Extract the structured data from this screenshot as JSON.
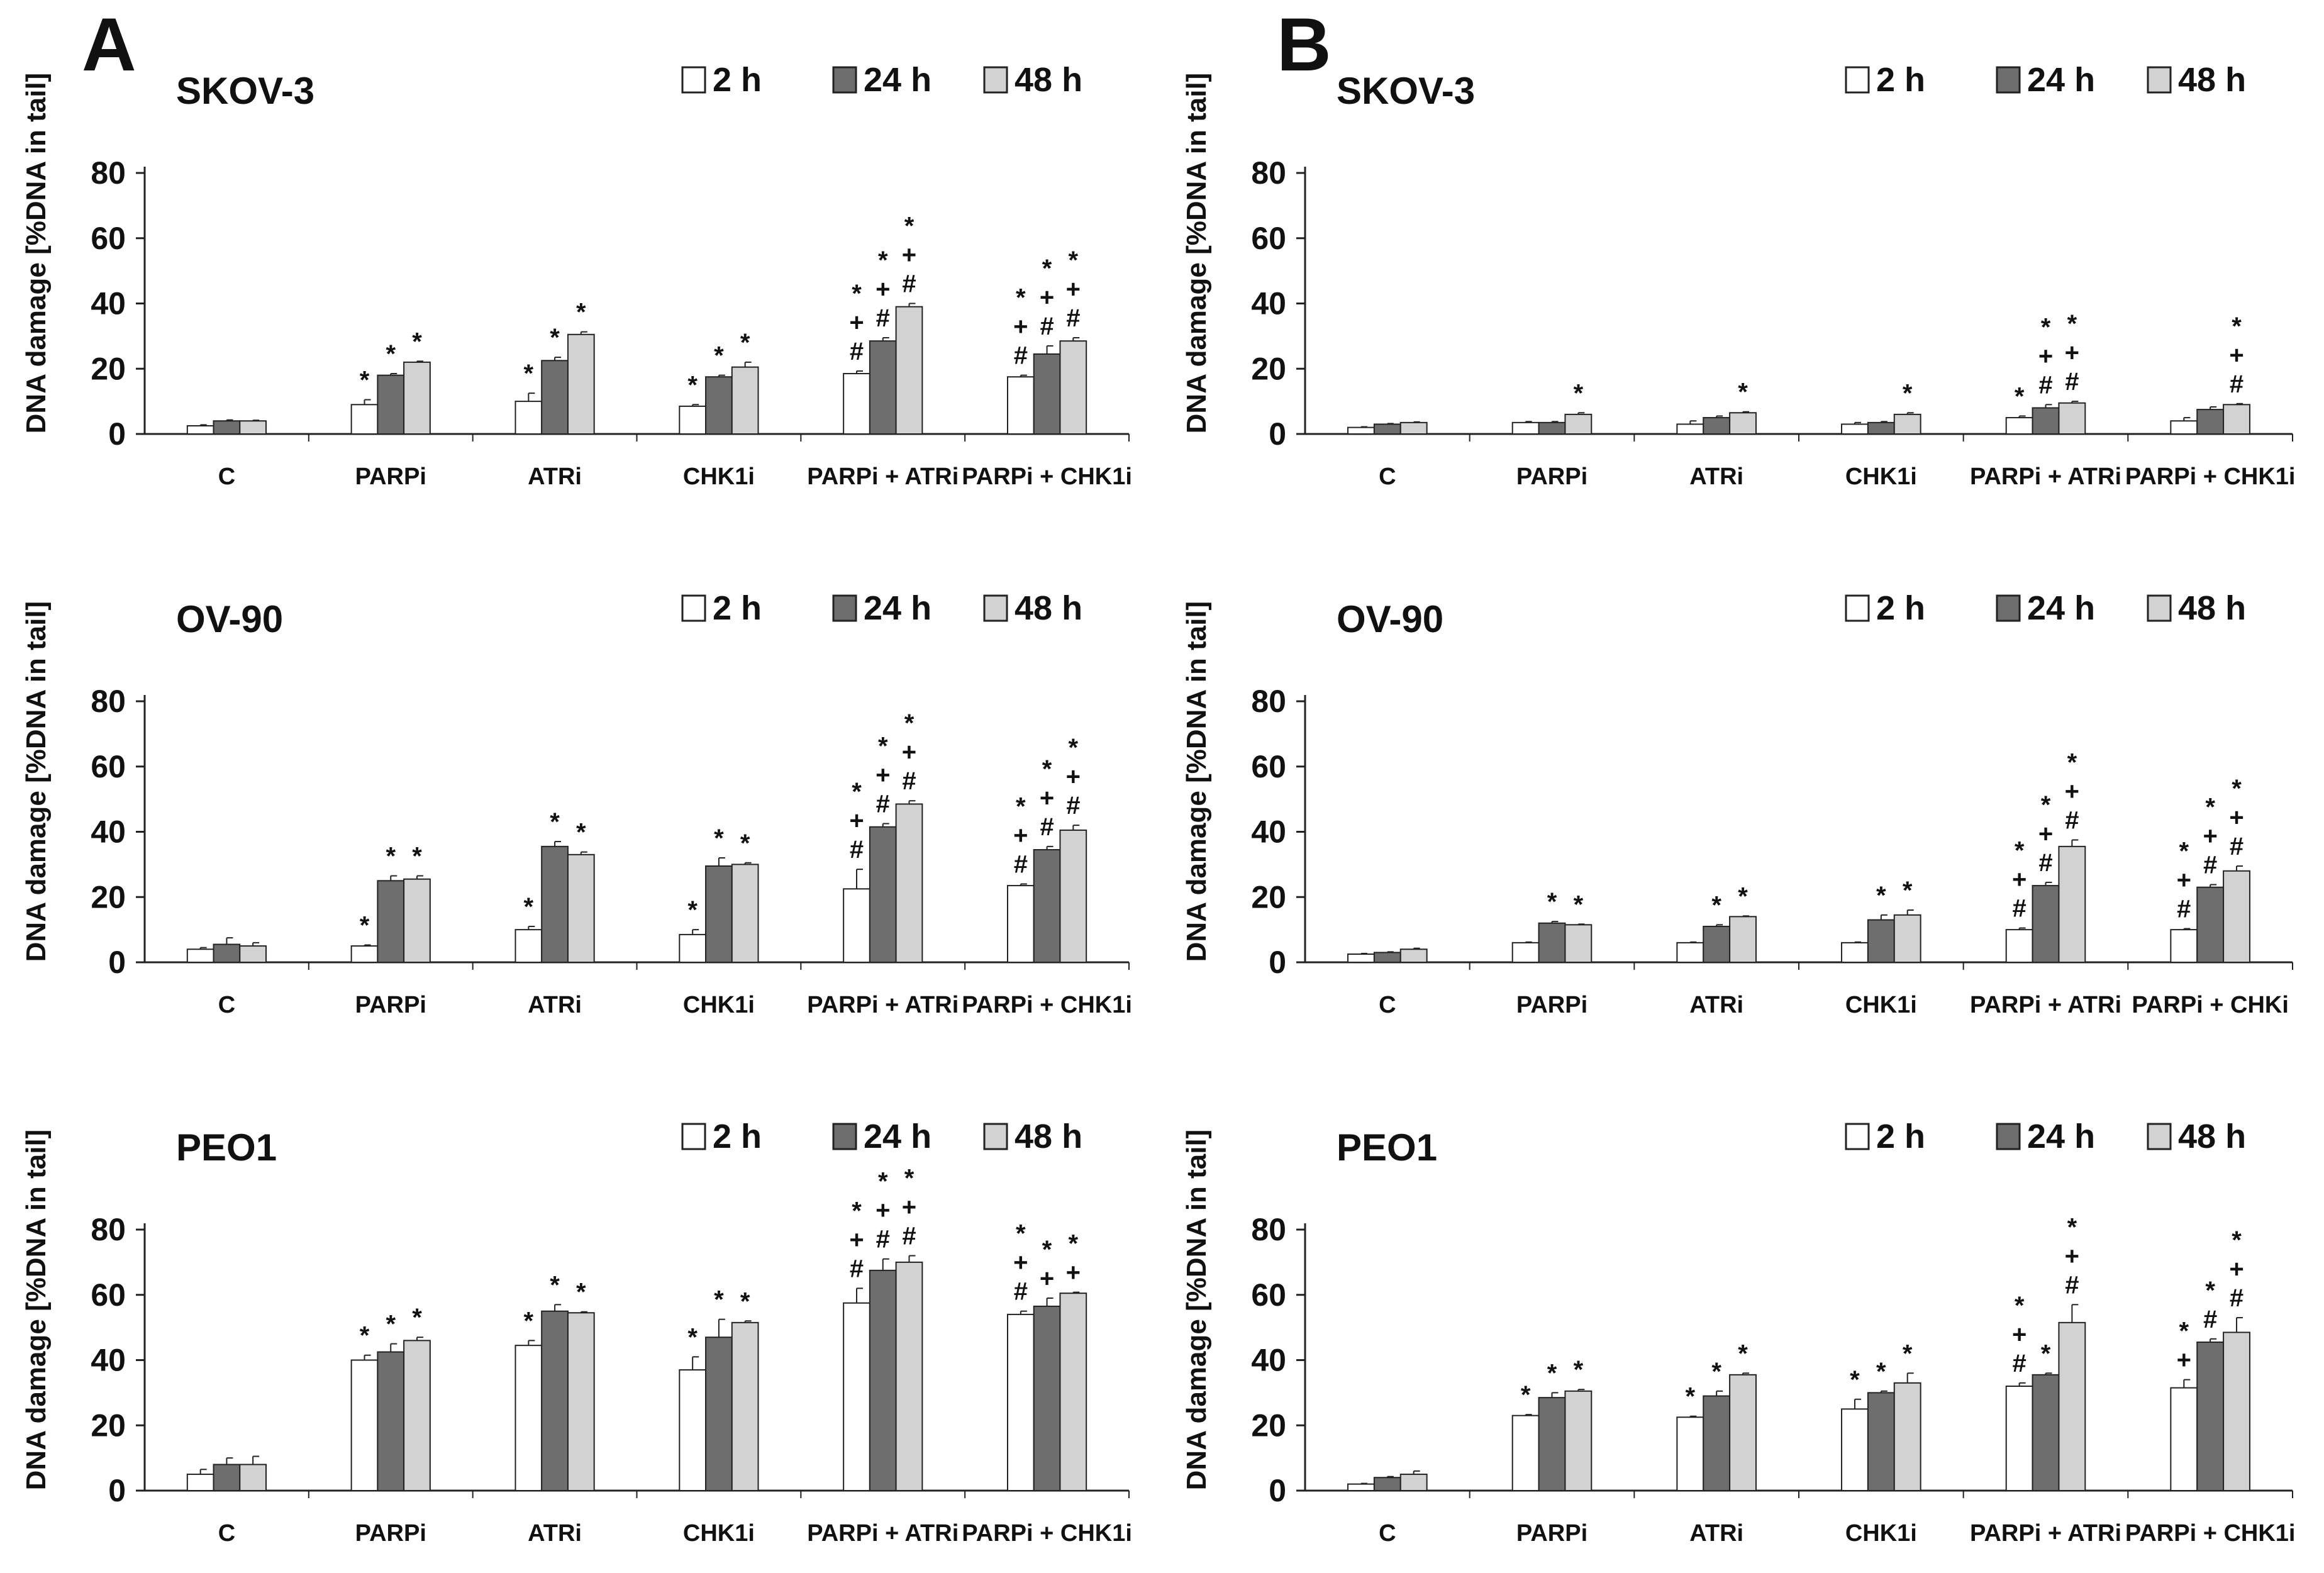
{
  "figure": {
    "panel_labels": [
      "A",
      "B"
    ],
    "colors": {
      "2 h": "#ffffff",
      "24 h": "#6e6e6e",
      "48 h": "#d2d2d2",
      "axis": "#222222",
      "text": "#111111"
    }
  },
  "chart_data": [
    {
      "type": "bar",
      "panel": "A",
      "title": "SKOV-3",
      "ylabel": "DNA damage [%DNA in tail]",
      "xlabel": "",
      "ylim": [
        0,
        80
      ],
      "yticks": [
        0,
        20,
        40,
        60,
        80
      ],
      "categories": [
        "C",
        "PARPi",
        "ATRi",
        "CHK1i",
        "PARPi + ATRi",
        "PARPi + CHK1i"
      ],
      "legend": [
        "2 h",
        "24 h",
        "48 h"
      ],
      "series": [
        {
          "name": "2 h",
          "values": [
            2.5,
            9,
            10,
            8.5,
            18.5,
            17.5
          ],
          "errors": [
            0.3,
            1.5,
            2.5,
            0.5,
            0.8,
            0.5
          ]
        },
        {
          "name": "24 h",
          "values": [
            4,
            18,
            22.5,
            17.5,
            28.5,
            24.5
          ],
          "errors": [
            0.3,
            0.5,
            1,
            0.5,
            1,
            2.5
          ]
        },
        {
          "name": "48 h",
          "values": [
            4,
            22,
            30.5,
            20.5,
            39,
            28.5
          ],
          "errors": [
            0.2,
            0.3,
            0.8,
            1.5,
            1,
            1
          ]
        }
      ],
      "annotations": [
        [
          "",
          "",
          ""
        ],
        [
          "*",
          "*",
          "*"
        ],
        [
          "*",
          "*",
          "*"
        ],
        [
          "*",
          "*",
          "*"
        ],
        [
          "# + *",
          "# + *",
          "# + *"
        ],
        [
          "# + *",
          "# + *",
          "# + *"
        ]
      ]
    },
    {
      "type": "bar",
      "panel": "B",
      "title": "SKOV-3",
      "ylabel": "DNA damage [%DNA in tail]",
      "xlabel": "",
      "ylim": [
        0,
        80
      ],
      "yticks": [
        0,
        20,
        40,
        60,
        80
      ],
      "categories": [
        "C",
        "PARPi",
        "ATRi",
        "CHK1i",
        "PARPi + ATRi",
        "PARPi + CHK1i"
      ],
      "legend": [
        "2 h",
        "24 h",
        "48 h"
      ],
      "series": [
        {
          "name": "2 h",
          "values": [
            2,
            3.5,
            3,
            3,
            5,
            4
          ],
          "errors": [
            0.2,
            0.3,
            1,
            0.5,
            0.5,
            1
          ]
        },
        {
          "name": "24 h",
          "values": [
            3,
            3.5,
            5,
            3.5,
            8,
            7.5
          ],
          "errors": [
            0.2,
            0.3,
            0.5,
            0.3,
            1,
            0.8
          ]
        },
        {
          "name": "48 h",
          "values": [
            3.5,
            6,
            6.5,
            6,
            9.5,
            9
          ],
          "errors": [
            0.2,
            0.5,
            0.3,
            0.5,
            0.5,
            0.3
          ]
        }
      ],
      "annotations": [
        [
          "",
          "",
          ""
        ],
        [
          "",
          "",
          "*"
        ],
        [
          "",
          "",
          "*"
        ],
        [
          "",
          "",
          "*"
        ],
        [
          "*",
          "# + *",
          "# + *"
        ],
        [
          "",
          "",
          "# + *"
        ]
      ]
    },
    {
      "type": "bar",
      "panel": "A",
      "title": "OV-90",
      "ylabel": "DNA damage [%DNA in tail]",
      "xlabel": "",
      "ylim": [
        0,
        80
      ],
      "yticks": [
        0,
        20,
        40,
        60,
        80
      ],
      "categories": [
        "C",
        "PARPi",
        "ATRi",
        "CHK1i",
        "PARPi + ATRi",
        "PARPi + CHK1i"
      ],
      "legend": [
        "2 h",
        "24 h",
        "48 h"
      ],
      "series": [
        {
          "name": "2 h",
          "values": [
            4,
            5,
            10,
            8.5,
            22.5,
            23.5
          ],
          "errors": [
            0.5,
            0.3,
            1,
            1.5,
            6,
            0.5
          ]
        },
        {
          "name": "24 h",
          "values": [
            5.5,
            25,
            35.5,
            29.5,
            41.5,
            34.5
          ],
          "errors": [
            2,
            1.5,
            1.5,
            2.5,
            1,
            1
          ]
        },
        {
          "name": "48 h",
          "values": [
            5,
            25.5,
            33,
            30,
            48.5,
            40.5
          ],
          "errors": [
            1,
            1,
            0.8,
            0.5,
            1,
            1.5
          ]
        }
      ],
      "annotations": [
        [
          "",
          "",
          ""
        ],
        [
          "*",
          "*",
          "*"
        ],
        [
          "*",
          "*",
          "*"
        ],
        [
          "*",
          "*",
          "*"
        ],
        [
          "# + *",
          "# + *",
          "# + *"
        ],
        [
          "# + *",
          "# + *",
          "# + *"
        ]
      ]
    },
    {
      "type": "bar",
      "panel": "B",
      "title": "OV-90",
      "ylabel": "DNA damage [%DNA in tail]",
      "xlabel": "",
      "ylim": [
        0,
        80
      ],
      "yticks": [
        0,
        20,
        40,
        60,
        80
      ],
      "categories": [
        "C",
        "PARPi",
        "ATRi",
        "CHK1i",
        "PARPi + ATRi",
        "PARPi + CHKi"
      ],
      "legend": [
        "2 h",
        "24 h",
        "48 h"
      ],
      "series": [
        {
          "name": "2 h",
          "values": [
            2.5,
            6,
            6,
            6,
            10,
            10
          ],
          "errors": [
            0.2,
            0.2,
            0.2,
            0.2,
            0.5,
            0.3
          ]
        },
        {
          "name": "24 h",
          "values": [
            3,
            12,
            11,
            13,
            23.5,
            23
          ],
          "errors": [
            0.2,
            0.5,
            0.5,
            1.5,
            1,
            0.8
          ]
        },
        {
          "name": "48 h",
          "values": [
            4,
            11.5,
            14,
            14.5,
            35.5,
            28
          ],
          "errors": [
            0.3,
            0.2,
            0.2,
            1.5,
            2,
            1.5
          ]
        }
      ],
      "annotations": [
        [
          "",
          "",
          ""
        ],
        [
          "",
          "*",
          "*"
        ],
        [
          "",
          "*",
          "*"
        ],
        [
          "",
          "*",
          "*"
        ],
        [
          "# + *",
          "# + *",
          "# + *"
        ],
        [
          "# + *",
          "# + *",
          "# + *"
        ]
      ]
    },
    {
      "type": "bar",
      "panel": "A",
      "title": "PEO1",
      "ylabel": "DNA damage [%DNA in tail]",
      "xlabel": "",
      "ylim": [
        0,
        80
      ],
      "yticks": [
        0,
        20,
        40,
        60,
        80
      ],
      "categories": [
        "C",
        "PARPi",
        "ATRi",
        "CHK1i",
        "PARPi + ATRi",
        "PARPi + CHK1i"
      ],
      "legend": [
        "2 h",
        "24 h",
        "48 h"
      ],
      "series": [
        {
          "name": "2 h",
          "values": [
            5,
            40,
            44.5,
            37,
            57.5,
            54
          ],
          "errors": [
            1.5,
            1.5,
            1.5,
            4,
            4.5,
            1
          ]
        },
        {
          "name": "24 h",
          "values": [
            8,
            42.5,
            55,
            47,
            67.5,
            56.5
          ],
          "errors": [
            2,
            2.5,
            2,
            5.5,
            3.5,
            2.5
          ]
        },
        {
          "name": "48 h",
          "values": [
            8,
            46,
            54.5,
            51.5,
            70,
            60.5
          ],
          "errors": [
            2.5,
            1,
            0.3,
            0.5,
            2,
            0.3
          ]
        }
      ],
      "annotations": [
        [
          "",
          "",
          ""
        ],
        [
          "*",
          "*",
          "*"
        ],
        [
          "*",
          "*",
          "*"
        ],
        [
          "*",
          "*",
          "*"
        ],
        [
          "# + *",
          "# + *",
          "# + *"
        ],
        [
          "# + *",
          "+ *",
          "+ *"
        ]
      ]
    },
    {
      "type": "bar",
      "panel": "B",
      "title": "PEO1",
      "ylabel": "DNA damage [%DNA in tail]",
      "xlabel": "",
      "ylim": [
        0,
        80
      ],
      "yticks": [
        0,
        20,
        40,
        60,
        80
      ],
      "categories": [
        "C",
        "PARPi",
        "ATRi",
        "CHK1i",
        "PARPi + ATRi",
        "PARPi + CHK1i"
      ],
      "legend": [
        "2 h",
        "24 h",
        "48 h"
      ],
      "series": [
        {
          "name": "2 h",
          "values": [
            2,
            23,
            22.5,
            25,
            32,
            31.5
          ],
          "errors": [
            0.2,
            0.3,
            0.3,
            3,
            1,
            2.5
          ]
        },
        {
          "name": "24 h",
          "values": [
            4,
            28.5,
            29,
            30,
            35.5,
            45.5
          ],
          "errors": [
            0.3,
            1.5,
            1.5,
            0.5,
            0.5,
            1
          ]
        },
        {
          "name": "48 h",
          "values": [
            5,
            30.5,
            35.5,
            33,
            51.5,
            48.5
          ],
          "errors": [
            1,
            0.5,
            0.5,
            3,
            5.5,
            4.5
          ]
        }
      ],
      "annotations": [
        [
          "",
          "",
          ""
        ],
        [
          "*",
          "*",
          "*"
        ],
        [
          "*",
          "*",
          "*"
        ],
        [
          "*",
          "*",
          "*"
        ],
        [
          "# + *",
          "*",
          "# + *"
        ],
        [
          "+ *",
          "# *",
          "# + *"
        ]
      ]
    }
  ]
}
